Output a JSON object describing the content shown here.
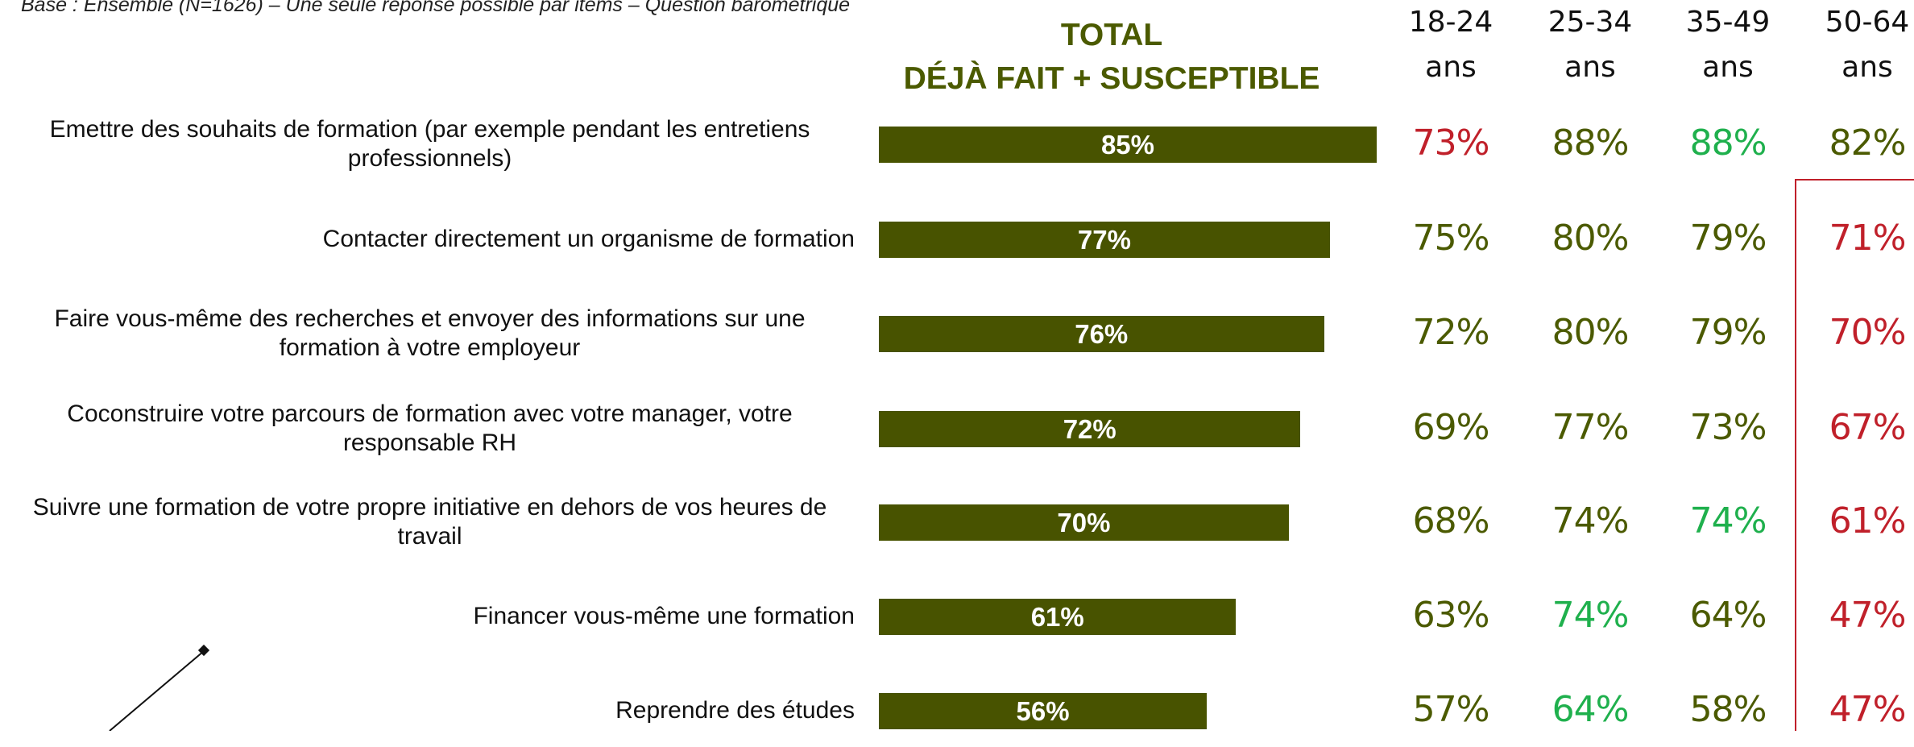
{
  "chart_data": {
    "type": "bar",
    "orientation": "horizontal",
    "subtitle": "Base : Ensemble (N=1626) – Une seule réponse possible par items – Question barométrique",
    "title": "TOTAL",
    "title2": "DÉJÀ FAIT + SUSCEPTIBLE",
    "color": "#485300",
    "categories": [
      "Emettre des souhaits de formation (par exemple pendant les entretiens professionnels)",
      "Contacter directement un organisme de formation",
      "Faire vous-même des recherches et envoyer des informations sur une formation à votre employeur",
      "Coconstruire votre parcours de formation avec votre manager, votre responsable RH",
      "Suivre une formation de votre propre initiative en dehors de vos heures de travail",
      "Financer vous-même une formation",
      "Reprendre des études"
    ],
    "values": [
      85,
      77,
      76,
      72,
      70,
      61,
      56
    ],
    "value_labels": [
      "85%",
      "77%",
      "76%",
      "72%",
      "70%",
      "61%",
      "56%"
    ],
    "series": [
      {
        "name": "18-24 ans",
        "values": [
          73,
          75,
          72,
          69,
          68,
          63,
          57
        ],
        "value_labels": [
          "73%",
          "75%",
          "72%",
          "69%",
          "68%",
          "63%",
          "57%"
        ],
        "colors": [
          "#c0202a",
          "#4b5a00",
          "#4b5a00",
          "#4b5a00",
          "#4b5a00",
          "#4b5a00",
          "#4b5a00"
        ]
      },
      {
        "name": "25-34 ans",
        "values": [
          88,
          80,
          80,
          77,
          74,
          74,
          64
        ],
        "value_labels": [
          "88%",
          "80%",
          "80%",
          "77%",
          "74%",
          "74%",
          "64%"
        ],
        "colors": [
          "#4b5a00",
          "#4b5a00",
          "#4b5a00",
          "#4b5a00",
          "#4b5a00",
          "#1fb04d",
          "#1fb04d"
        ]
      },
      {
        "name": "35-49 ans",
        "values": [
          88,
          79,
          79,
          73,
          74,
          64,
          58
        ],
        "value_labels": [
          "88%",
          "79%",
          "79%",
          "73%",
          "74%",
          "64%",
          "58%"
        ],
        "colors": [
          "#1fb04d",
          "#4b5a00",
          "#4b5a00",
          "#4b5a00",
          "#1fb04d",
          "#4b5a00",
          "#4b5a00"
        ]
      },
      {
        "name": "50-64 ans",
        "values": [
          82,
          71,
          70,
          67,
          61,
          47,
          47
        ],
        "value_labels": [
          "82%",
          "71%",
          "70%",
          "67%",
          "61%",
          "47%",
          "47%"
        ],
        "colors": [
          "#4b5a00",
          "#c0202a",
          "#c0202a",
          "#c0202a",
          "#c0202a",
          "#c0202a",
          "#c0202a"
        ]
      }
    ]
  }
}
